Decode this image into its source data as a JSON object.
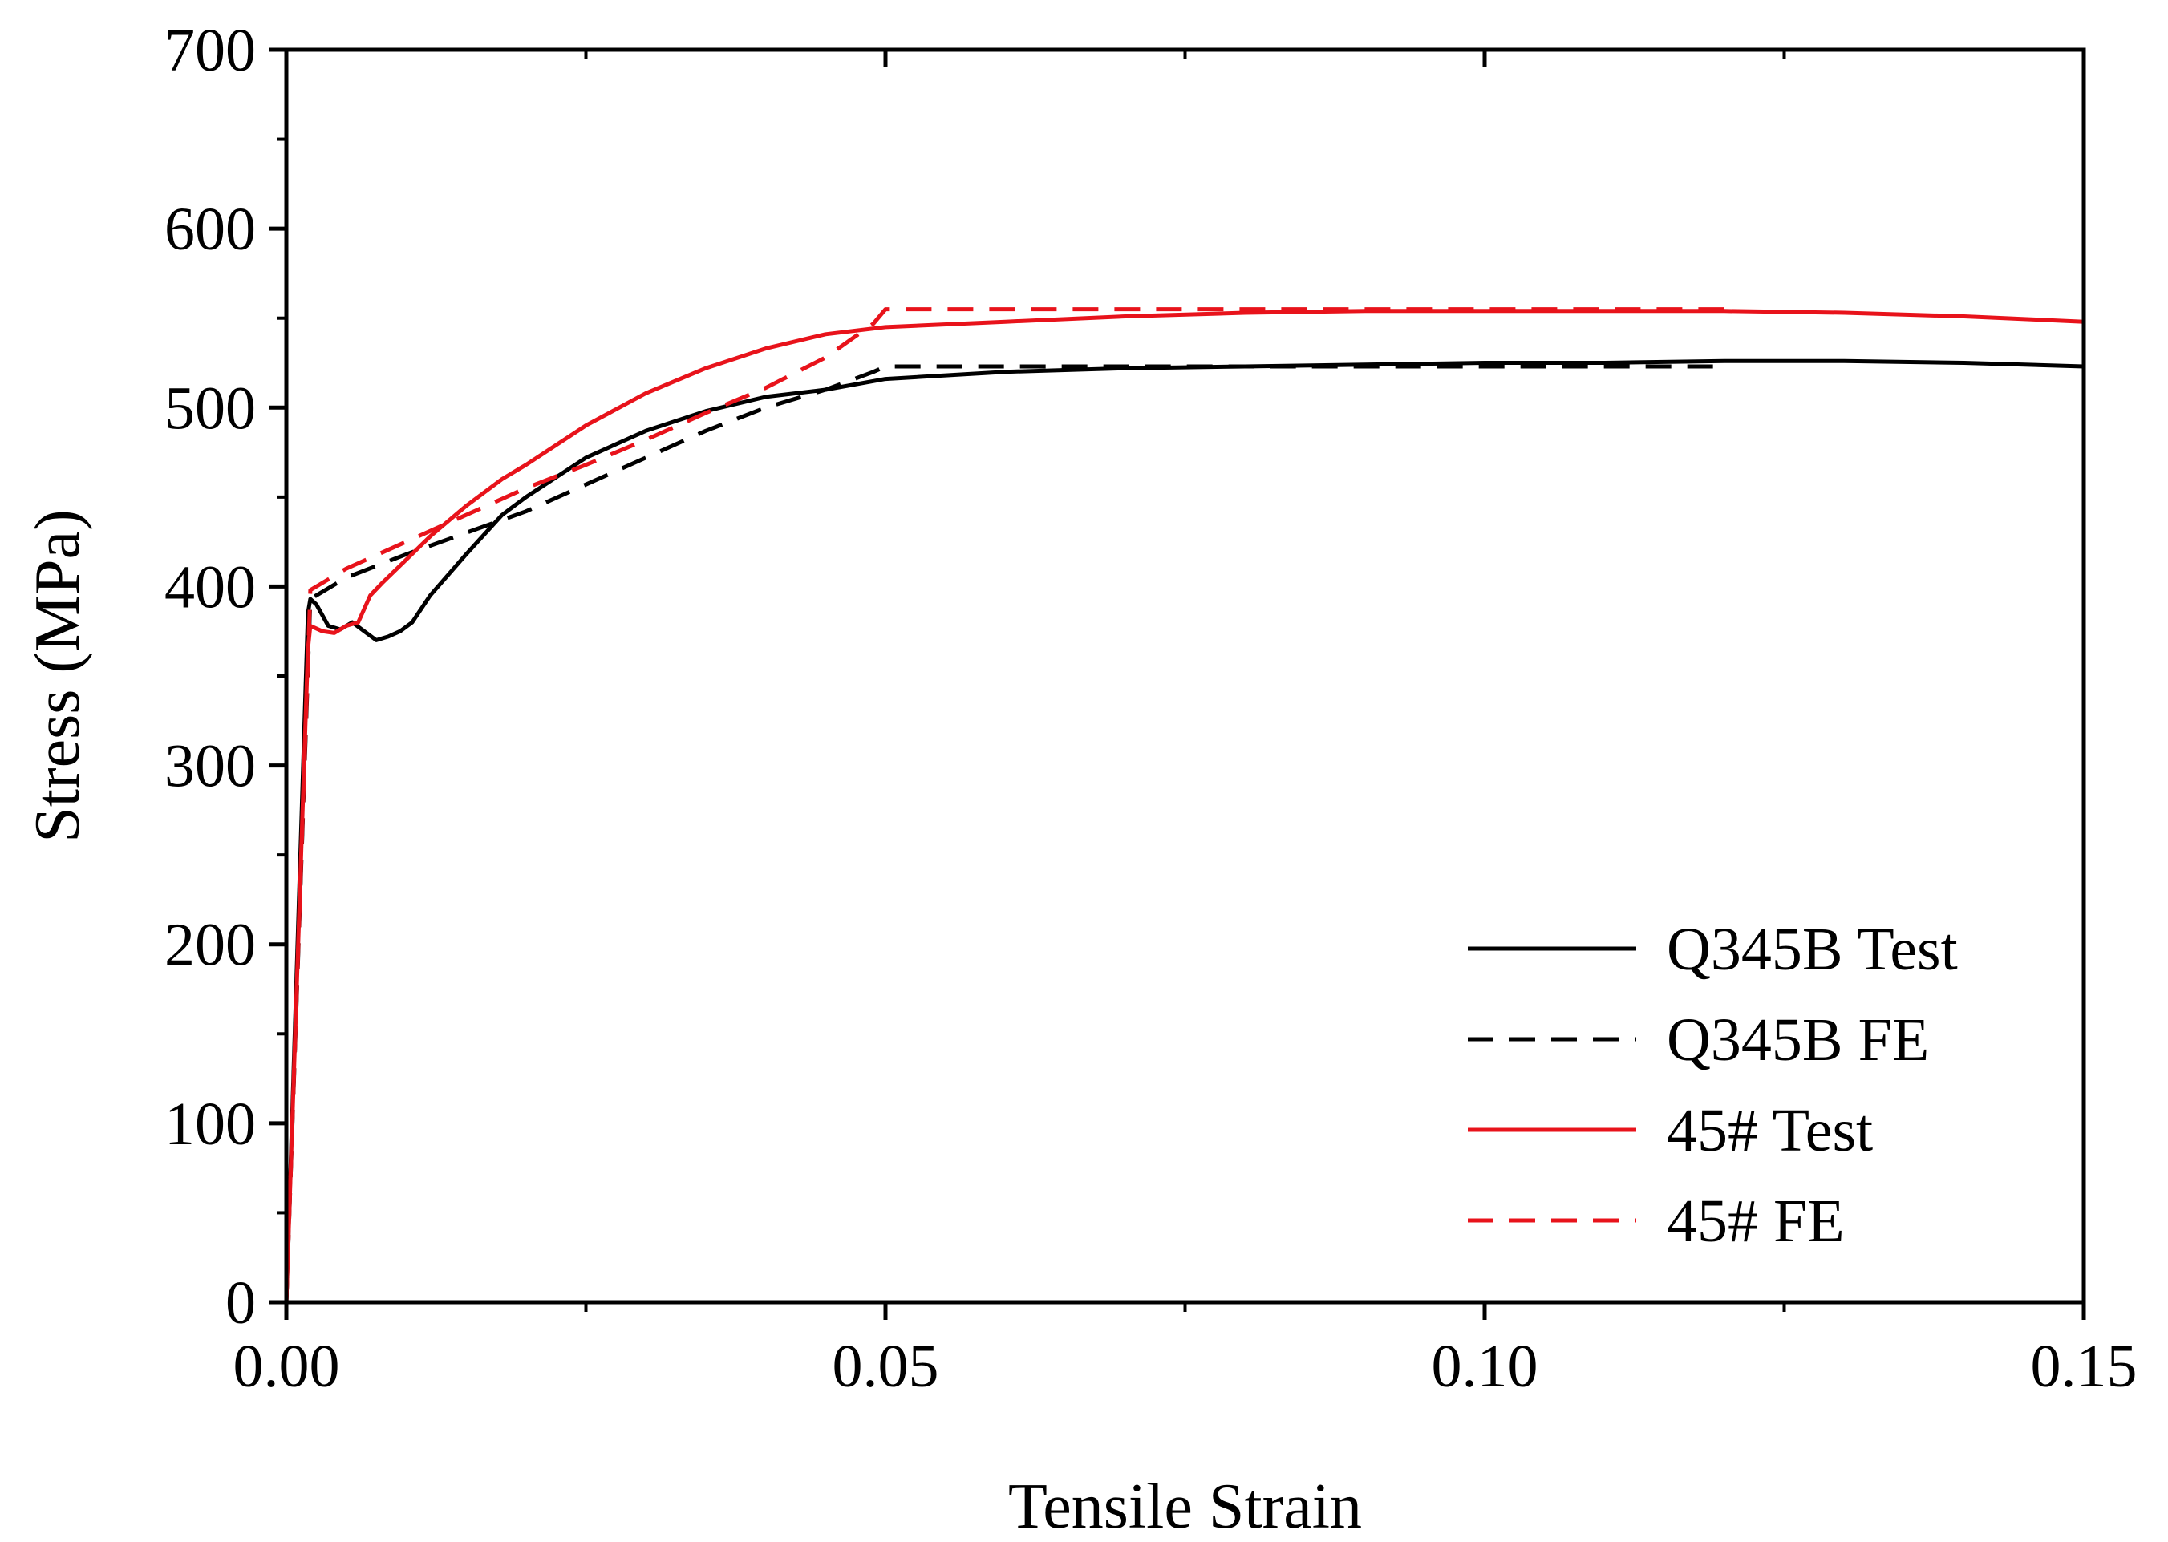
{
  "chart_data": {
    "type": "line",
    "title": "",
    "xlabel": "Tensile Strain",
    "ylabel": "Stress (MPa)",
    "xlim": [
      0,
      0.15
    ],
    "ylim": [
      0,
      700
    ],
    "xticks": [
      0.0,
      0.05,
      0.1,
      0.15
    ],
    "xtick_labels": [
      "0.00",
      "0.05",
      "0.10",
      "0.15"
    ],
    "yticks": [
      0,
      100,
      200,
      300,
      400,
      500,
      600,
      700
    ],
    "ytick_labels": [
      "0",
      "100",
      "200",
      "300",
      "400",
      "500",
      "600",
      "700"
    ],
    "grid": false,
    "legend_position": "bottom-right",
    "series": [
      {
        "name": "Q345B Test",
        "color": "#000000",
        "dash": "solid",
        "x": [
          0,
          0.0018,
          0.002,
          0.0025,
          0.0035,
          0.0045,
          0.0055,
          0.0065,
          0.0075,
          0.0085,
          0.0095,
          0.0105,
          0.012,
          0.015,
          0.018,
          0.02,
          0.025,
          0.03,
          0.035,
          0.04,
          0.045,
          0.05,
          0.06,
          0.07,
          0.08,
          0.09,
          0.1,
          0.11,
          0.12,
          0.13,
          0.14,
          0.15
        ],
        "y": [
          0,
          385,
          393,
          390,
          378,
          376,
          380,
          375,
          370,
          372,
          375,
          380,
          395,
          418,
          440,
          450,
          472,
          487,
          498,
          506,
          510,
          516,
          520,
          522,
          523,
          524,
          525,
          525,
          526,
          526,
          525,
          523
        ]
      },
      {
        "name": "Q345B FE",
        "color": "#000000",
        "dash": "dashed",
        "x": [
          0,
          0.002,
          0.005,
          0.01,
          0.015,
          0.02,
          0.025,
          0.03,
          0.035,
          0.04,
          0.045,
          0.049,
          0.05,
          0.06,
          0.07,
          0.08,
          0.09,
          0.1,
          0.11,
          0.12
        ],
        "y": [
          0,
          393,
          405,
          418,
          430,
          442,
          457,
          472,
          487,
          500,
          510,
          520,
          523,
          523,
          523,
          523,
          523,
          523,
          523,
          523
        ]
      },
      {
        "name": "45# Test",
        "color": "#e8131b",
        "dash": "solid",
        "x": [
          0,
          0.0018,
          0.002,
          0.003,
          0.004,
          0.005,
          0.006,
          0.007,
          0.008,
          0.01,
          0.012,
          0.015,
          0.018,
          0.02,
          0.025,
          0.03,
          0.035,
          0.04,
          0.045,
          0.05,
          0.06,
          0.07,
          0.08,
          0.09,
          0.1,
          0.11,
          0.12,
          0.13,
          0.14,
          0.15
        ],
        "y": [
          0,
          365,
          378,
          375,
          374,
          378,
          380,
          395,
          402,
          415,
          428,
          445,
          460,
          468,
          490,
          508,
          522,
          533,
          541,
          545,
          548,
          551,
          553,
          554,
          554,
          554,
          554,
          553,
          551,
          548
        ]
      },
      {
        "name": "45# FE",
        "color": "#e8131b",
        "dash": "dashed",
        "x": [
          0,
          0.002,
          0.005,
          0.01,
          0.015,
          0.02,
          0.025,
          0.03,
          0.035,
          0.04,
          0.045,
          0.049,
          0.05,
          0.06,
          0.07,
          0.08,
          0.09,
          0.1,
          0.11,
          0.12
        ],
        "y": [
          0,
          398,
          410,
          425,
          440,
          455,
          468,
          482,
          497,
          511,
          528,
          547,
          555,
          555,
          555,
          555,
          555,
          555,
          555,
          555
        ]
      }
    ]
  }
}
